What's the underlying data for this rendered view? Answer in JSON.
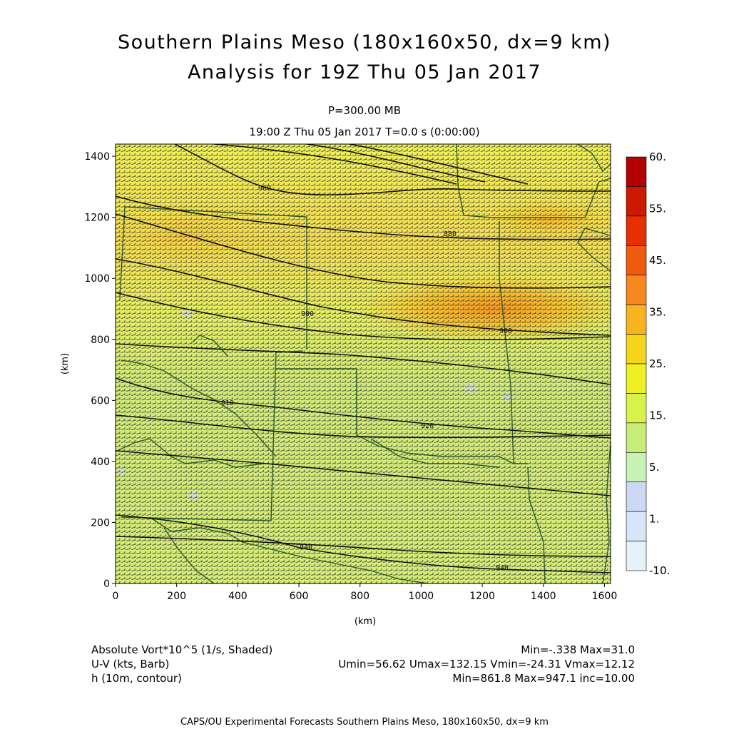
{
  "title": "Southern Plains Meso (180x160x50, dx=9 km)",
  "subtitle": "Analysis for 19Z Thu 05 Jan 2017",
  "level_label": "P=300.00 MB",
  "time_label": "19:00 Z Thu 05 Jan 2017    T=0.0 s (0:00:00)",
  "axes": {
    "x_label": "(km)",
    "y_label": "(km)",
    "x_ticks": [
      "0",
      "200",
      "400",
      "600",
      "800",
      "1000",
      "1200",
      "1400",
      "1600"
    ],
    "y_ticks": [
      "0",
      "200",
      "400",
      "600",
      "800",
      "1000",
      "1200",
      "1400"
    ],
    "x_range": [
      0,
      1620
    ],
    "y_range": [
      0,
      1440
    ]
  },
  "colorbar": {
    "labels": [
      "60.",
      "55.",
      "45.",
      "35.",
      "25.",
      "15.",
      "5.",
      "1.",
      "-10."
    ],
    "colors": [
      "#b30000",
      "#cc1a00",
      "#e63000",
      "#f05a0f",
      "#f5881e",
      "#f8b41f",
      "#f5d41a",
      "#eef024",
      "#d9f24a",
      "#c6ec7a",
      "#c8f2b4",
      "#cdd8f5",
      "#d6e6f8",
      "#e6f2fa"
    ]
  },
  "contours": [
    {
      "label": "900",
      "value": 900
    },
    {
      "label": "880",
      "value": 880
    },
    {
      "label": "900",
      "value": 900
    },
    {
      "label": "900",
      "value": 900
    },
    {
      "label": "910",
      "value": 910
    },
    {
      "label": "920",
      "value": 920
    },
    {
      "label": "940",
      "value": 940
    },
    {
      "label": "940",
      "value": 940
    }
  ],
  "legend": {
    "fields": [
      {
        "name": "Absolute Vort*10^5 (1/s, Shaded)",
        "stats": "Min=-.338 Max=31.0"
      },
      {
        "name": "U-V (kts, Barb)",
        "stats": "Umin=56.62 Umax=132.15 Vmin=-24.31 Vmax=12.12"
      },
      {
        "name": "h (10m, contour)",
        "stats": "Min=861.8 Max=947.1 inc=10.00"
      }
    ]
  },
  "footer": "CAPS/OU Experimental Forecasts  Southern Plains Meso, 180x160x50, dx=9 km"
}
